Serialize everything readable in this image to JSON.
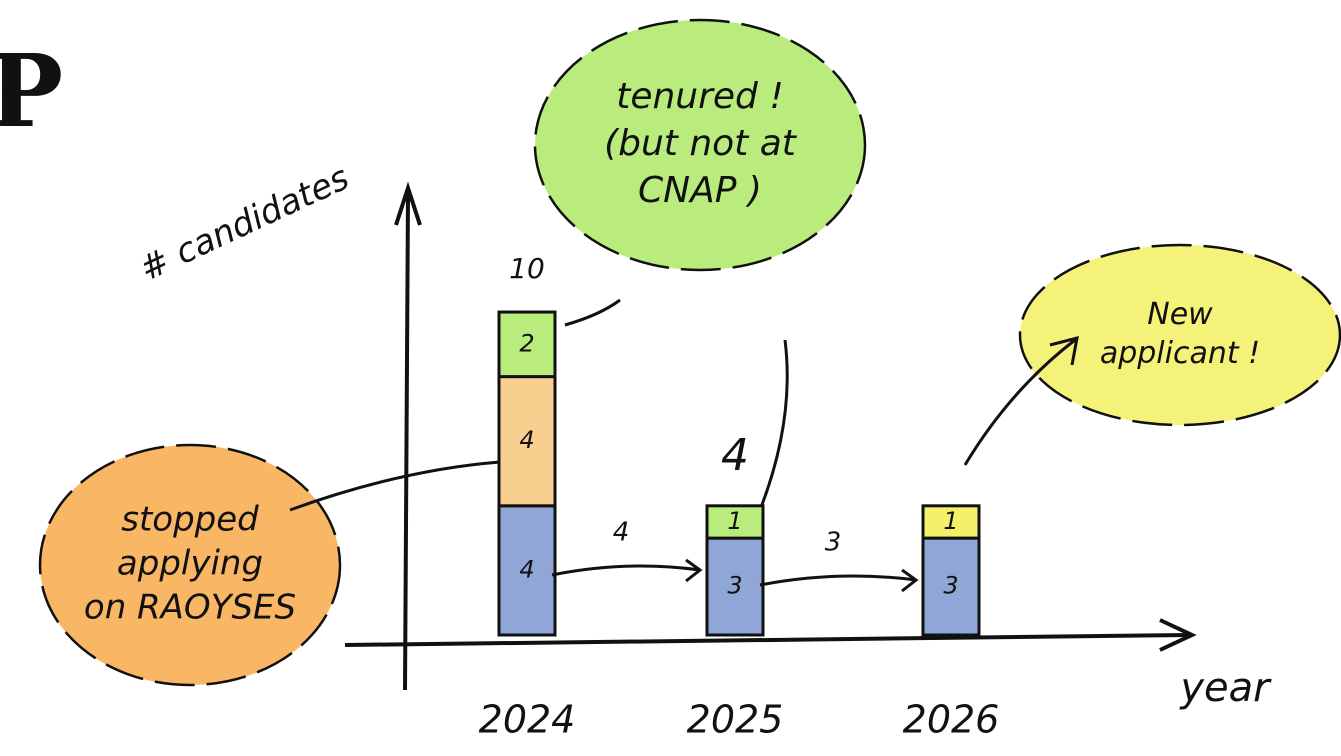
{
  "chart_data": {
    "type": "bar",
    "stacked": true,
    "title": "P",
    "ylabel": "# candidates",
    "xlabel": "year",
    "categories": [
      "2024",
      "2025",
      "2026"
    ],
    "series": [
      {
        "color": "#8fa6d6",
        "values": [
          4,
          3,
          3
        ]
      },
      {
        "color": "#f9cf8f",
        "values": [
          4,
          null,
          null
        ]
      },
      {
        "color": "#b9ec7c",
        "values": [
          2,
          1,
          null
        ]
      },
      {
        "color": "#f5f06a",
        "values": [
          null,
          null,
          1
        ]
      }
    ],
    "total_labels": [
      10,
      4,
      null
    ],
    "flow_labels": [
      4,
      3
    ],
    "ylim": [
      0,
      13.5
    ],
    "annotations": [
      {
        "lines": [
          "tenured !",
          "(but not at",
          "CNAP )"
        ],
        "color": "#b9ec7c"
      },
      {
        "lines": [
          "stopped",
          "applying",
          "on RAOYSES"
        ],
        "color": "#f9b766"
      },
      {
        "lines": [
          "New",
          "applicant !"
        ],
        "color": "#f5f27a"
      }
    ]
  }
}
